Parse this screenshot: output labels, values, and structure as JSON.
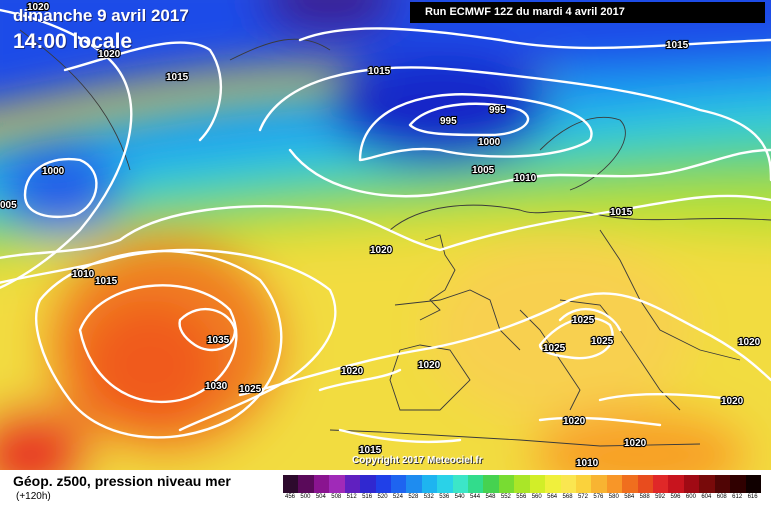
{
  "header": {
    "date": "dimanche 9 avril 2017",
    "time": "14:00 locale",
    "run": "Run ECMWF 12Z du mardi 4 avril 2017"
  },
  "copyright": "Copyright 2017 Meteociel.fr",
  "legend": {
    "title": "Géop. z500, pression niveau mer",
    "subtitle": "(+120h)",
    "scale_values": [
      "456",
      "500",
      "504",
      "508",
      "512",
      "516",
      "520",
      "524",
      "528",
      "532",
      "536",
      "540",
      "544",
      "548",
      "552",
      "556",
      "560",
      "564",
      "568",
      "572",
      "576",
      "580",
      "584",
      "588",
      "592",
      "596",
      "600",
      "604",
      "608",
      "612",
      "616"
    ],
    "scale_colors": [
      "#2d0a2d",
      "#5a0a5a",
      "#8a1490",
      "#a02ab8",
      "#6020c0",
      "#3028d0",
      "#2040e8",
      "#1e64f0",
      "#1e8cf0",
      "#1eb4f0",
      "#2ad2e8",
      "#3ce6c8",
      "#32dc8c",
      "#46d250",
      "#78dc32",
      "#aae628",
      "#d2ee28",
      "#f0f03c",
      "#fae650",
      "#fad23c",
      "#f8b432",
      "#f89628",
      "#f06e1e",
      "#e84c1e",
      "#e02828",
      "#c8141e",
      "#a00a14",
      "#780a0a",
      "#500505",
      "#300000",
      "#100000"
    ]
  },
  "isobar_labels": [
    "1020",
    "1020",
    "1015",
    "1015",
    "995",
    "995",
    "1000",
    "1005",
    "1010",
    "1000",
    "005",
    "1015",
    "1010",
    "1015",
    "1020",
    "1035",
    "1030",
    "1025",
    "1020",
    "1020",
    "1025",
    "1025",
    "1025",
    "1020",
    "1020",
    "1020",
    "1015",
    "1020",
    "1010",
    "1015"
  ]
}
